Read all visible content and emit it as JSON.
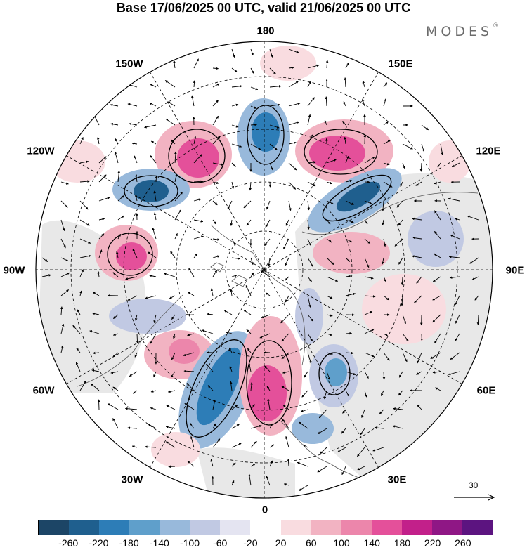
{
  "title": "Base 17/06/2025 00 UTC, valid 21/06/2025 00 UTC",
  "brand": {
    "name": "MODES",
    "mark": "®"
  },
  "map": {
    "projection": "north-polar-stereographic",
    "longitude_labels": [
      "180",
      "150E",
      "120E",
      "90E",
      "60E",
      "30E",
      "0",
      "30W",
      "60W",
      "90W",
      "120W",
      "150W"
    ],
    "colors": {
      "land_grey": "#e6e6e6",
      "graticule": "#000000",
      "coast": "#555555"
    }
  },
  "reference_vector": {
    "value": "30"
  },
  "colorbar": {
    "colors": [
      "#1c4566",
      "#1f5f8e",
      "#2d7db7",
      "#5f9fcb",
      "#98b9db",
      "#c1c9e3",
      "#e4e4f1",
      "#ffffff",
      "#f9dce0",
      "#f2b3c2",
      "#ec86ab",
      "#e4509a",
      "#c2208a",
      "#8f1785",
      "#5c1480"
    ],
    "tick_labels": [
      "-260",
      "-220",
      "-180",
      "-140",
      "-100",
      "-60",
      "-20",
      "20",
      "60",
      "100",
      "140",
      "180",
      "220",
      "260"
    ]
  }
}
